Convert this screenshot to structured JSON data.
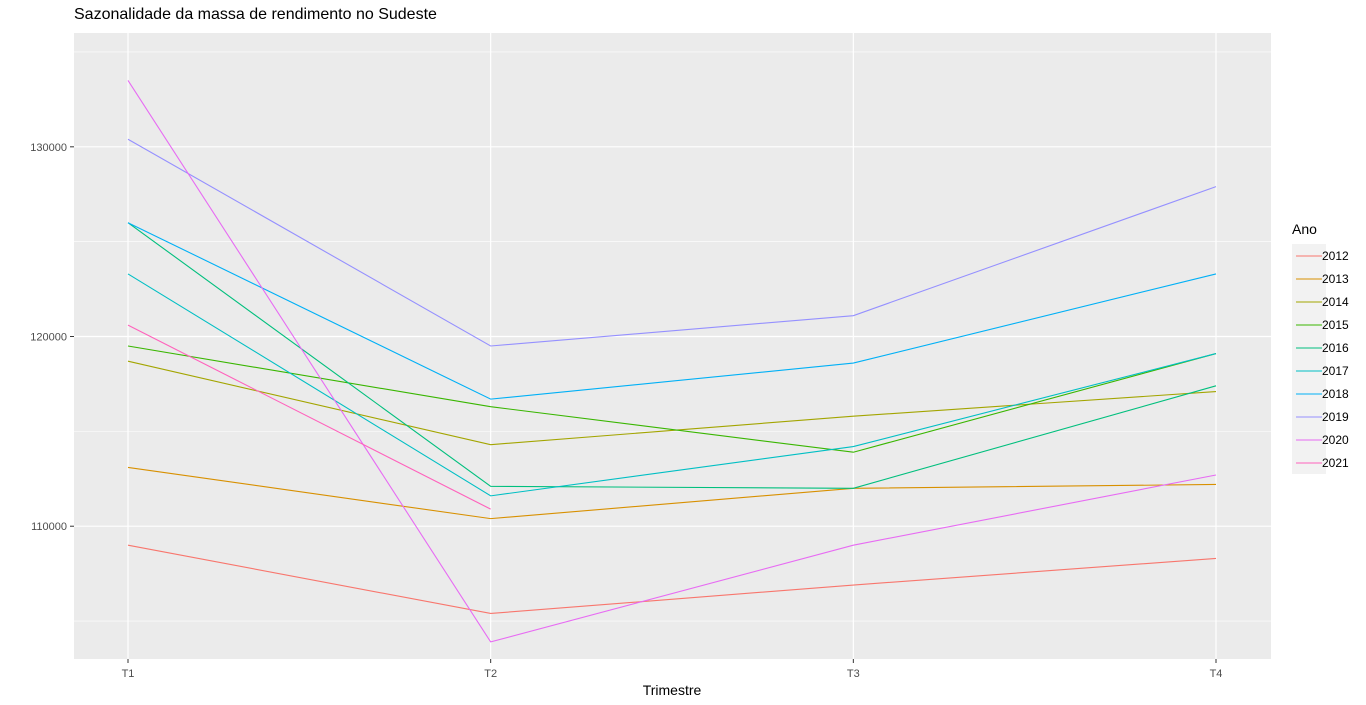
{
  "chart_data": {
    "type": "line",
    "title": "Sazonalidade da massa de rendimento no Sudeste",
    "xlabel": "Trimestre",
    "ylabel": "",
    "categories": [
      "T1",
      "T2",
      "T3",
      "T4"
    ],
    "ylim": [
      103000,
      136000
    ],
    "y_ticks": [
      110000,
      120000,
      130000
    ],
    "y_tick_labels": [
      "110000",
      "120000",
      "130000"
    ],
    "grid": true,
    "legend_title": "Ano",
    "legend_position": "right",
    "series": [
      {
        "name": "2012",
        "color": "#F8766D",
        "values": [
          109000,
          105400,
          106900,
          108300
        ]
      },
      {
        "name": "2013",
        "color": "#D89000",
        "values": [
          113100,
          110400,
          112000,
          112200
        ]
      },
      {
        "name": "2014",
        "color": "#A3A500",
        "values": [
          118700,
          114300,
          115800,
          117100
        ]
      },
      {
        "name": "2015",
        "color": "#39B600",
        "values": [
          119500,
          116300,
          113900,
          119100
        ]
      },
      {
        "name": "2016",
        "color": "#00BF7D",
        "values": [
          126000,
          112100,
          112000,
          117400
        ]
      },
      {
        "name": "2017",
        "color": "#00BFC4",
        "values": [
          123300,
          111600,
          114200,
          119100
        ]
      },
      {
        "name": "2018",
        "color": "#00B0F6",
        "values": [
          126000,
          116700,
          118600,
          123300
        ]
      },
      {
        "name": "2019",
        "color": "#9590FF",
        "values": [
          130400,
          119500,
          121100,
          127900
        ]
      },
      {
        "name": "2020",
        "color": "#E76BF3",
        "values": [
          133500,
          103900,
          109000,
          112700
        ]
      },
      {
        "name": "2021",
        "color": "#FF62BC",
        "values": [
          120600,
          110900,
          null,
          null
        ]
      }
    ]
  }
}
